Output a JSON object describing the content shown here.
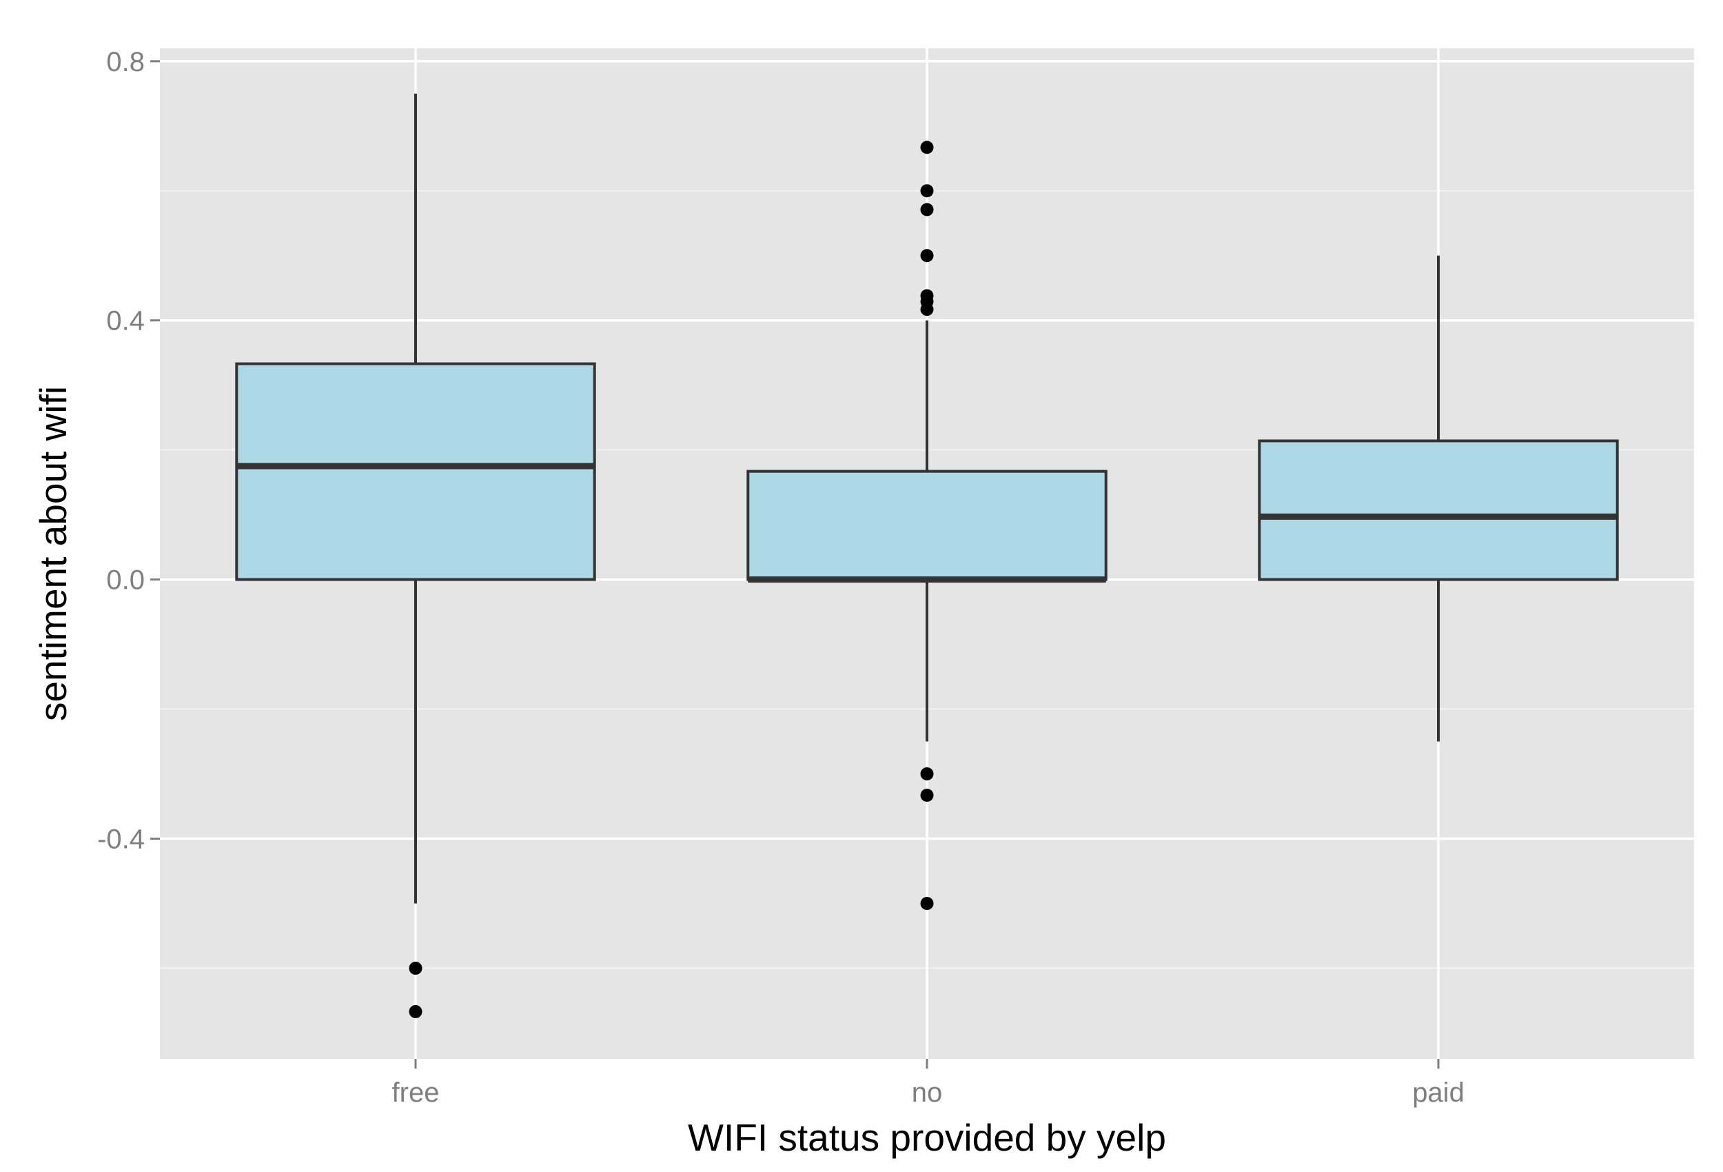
{
  "chart_data": {
    "type": "boxplot",
    "title": "",
    "xlabel": "WIFI status provided by yelp",
    "ylabel": "sentiment about wifi",
    "categories": [
      "free",
      "no",
      "paid"
    ],
    "ylim": [
      -0.74,
      0.82
    ],
    "yticks": [
      -0.4,
      0.0,
      0.4,
      0.8
    ],
    "ytick_labels": [
      "-0.4",
      "0.0",
      "0.4",
      "0.8"
    ],
    "grid": true,
    "legend": "none",
    "boxes": [
      {
        "category": "free",
        "whisker_low": -0.5,
        "q1": 0.0,
        "median": 0.175,
        "q3": 0.333,
        "whisker_high": 0.75,
        "outliers": [
          -0.6,
          -0.667
        ]
      },
      {
        "category": "no",
        "whisker_low": -0.25,
        "q1": 0.0,
        "median": 0.0,
        "q3": 0.167,
        "whisker_high": 0.4,
        "outliers": [
          0.667,
          0.6,
          0.571,
          0.5,
          0.438,
          0.429,
          0.417,
          -0.3,
          -0.333,
          -0.5
        ]
      },
      {
        "category": "paid",
        "whisker_low": -0.25,
        "q1": 0.0,
        "median": 0.097,
        "q3": 0.214,
        "whisker_high": 0.5,
        "outliers": []
      }
    ],
    "colors": {
      "panel_background": "#e5e5e5",
      "grid_major": "#ffffff",
      "grid_minor": "#f2f2f2",
      "box_fill": "#add8e6",
      "box_stroke": "#333333",
      "outlier": "#000000",
      "tick_text": "#7f7f7f"
    }
  }
}
